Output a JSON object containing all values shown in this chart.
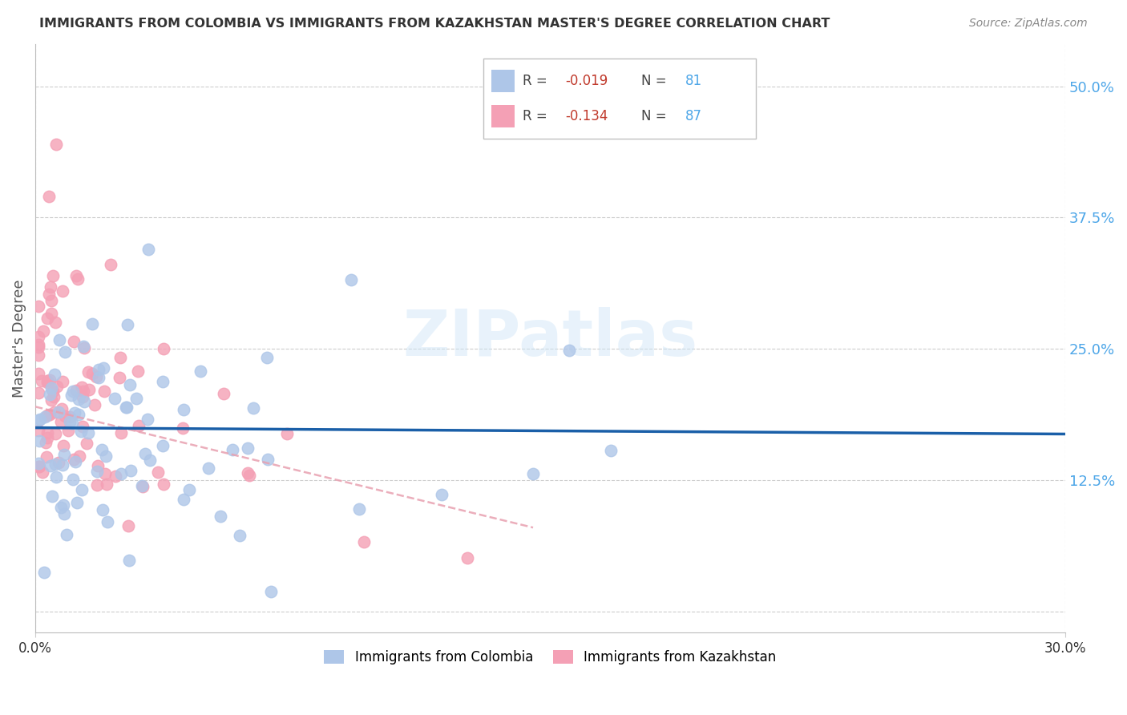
{
  "title": "IMMIGRANTS FROM COLOMBIA VS IMMIGRANTS FROM KAZAKHSTAN MASTER'S DEGREE CORRELATION CHART",
  "source": "Source: ZipAtlas.com",
  "ylabel": "Master's Degree",
  "xlim": [
    0.0,
    0.3
  ],
  "ylim": [
    -0.02,
    0.54
  ],
  "yticks": [
    0.0,
    0.125,
    0.25,
    0.375,
    0.5
  ],
  "ytick_labels": [
    "",
    "12.5%",
    "25.0%",
    "37.5%",
    "50.0%"
  ],
  "colombia_R": -0.019,
  "colombia_N": 81,
  "kazakhstan_R": -0.134,
  "kazakhstan_N": 87,
  "colombia_color": "#aec6e8",
  "kazakhstan_color": "#f4a0b5",
  "colombia_line_color": "#1a5fa8",
  "kazakhstan_line_color": "#e8a0b0",
  "watermark": "ZIPatlas",
  "background_color": "#ffffff",
  "grid_color": "#c8c8c8",
  "legend_r_color": "#c0392b",
  "legend_n_color": "#4da6e8",
  "tick_color": "#4da6e8",
  "title_color": "#333333",
  "source_color": "#888888",
  "ylabel_color": "#555555"
}
